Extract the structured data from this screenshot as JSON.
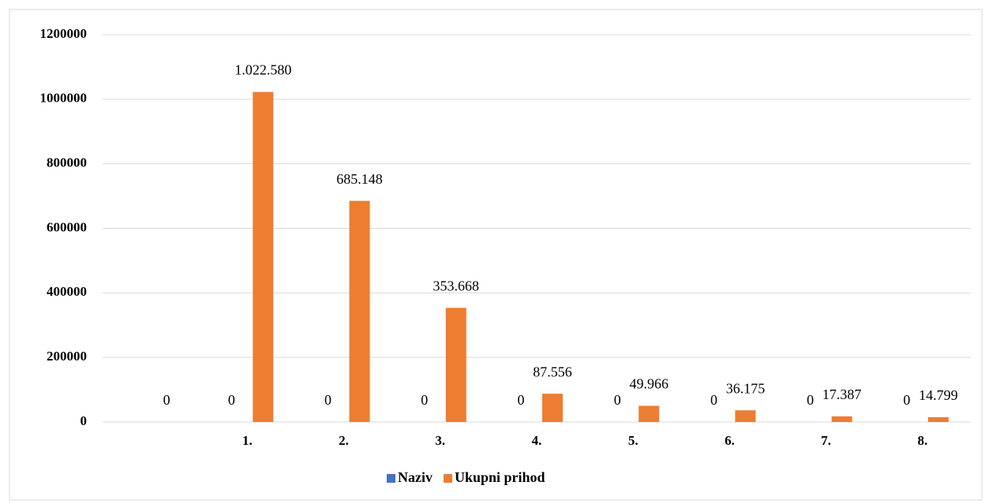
{
  "chart_data": {
    "type": "bar",
    "categories": [
      null,
      "1.",
      "2.",
      "3.",
      "4.",
      "5.",
      "6.",
      "7.",
      "8."
    ],
    "series": [
      {
        "name": "Naziv",
        "color": "#4472c4",
        "values": [
          null,
          0,
          0,
          0,
          0,
          0,
          0,
          0,
          0
        ]
      },
      {
        "name": "Ukupni prihod",
        "color": "#ed7d31",
        "values": [
          0,
          1022580,
          685148,
          353668,
          87556,
          49966,
          36175,
          17387,
          14799
        ],
        "value_labels": [
          "0",
          "1.022.580",
          "685.148",
          "353.668",
          "87.556",
          "49.966",
          "36.175",
          "17.387",
          "14.799"
        ]
      }
    ],
    "ylim": [
      0,
      1200000
    ],
    "yticks": [
      0,
      200000,
      400000,
      600000,
      800000,
      1000000,
      1200000
    ],
    "grid": true,
    "legend": "bottom"
  }
}
